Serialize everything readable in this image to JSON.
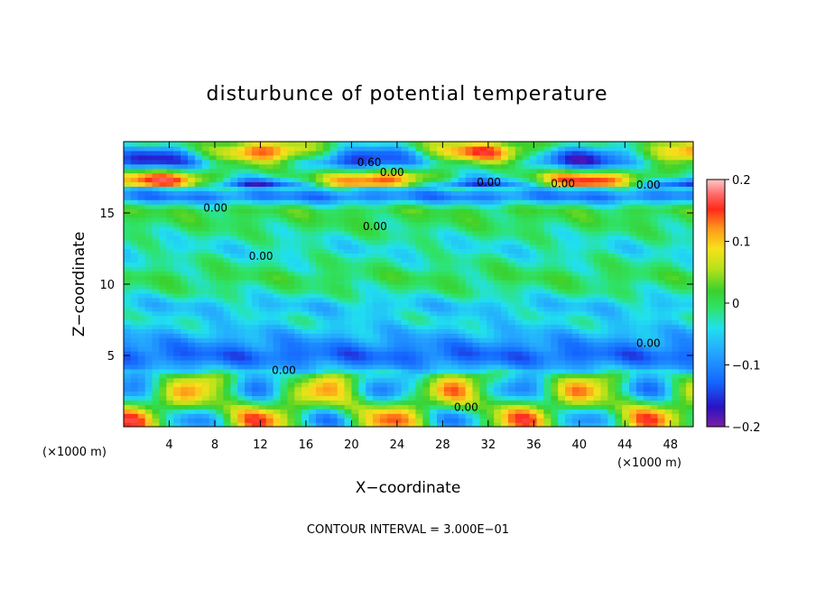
{
  "chart_data": {
    "type": "heatmap",
    "title": "disturbunce of potential temperature",
    "xlabel": "X−coordinate",
    "ylabel": "Z−coordinate",
    "x_unit": "(×1000 m)",
    "x_unit_right": "(×1000 m)",
    "xlim": [
      0,
      50
    ],
    "ylim": [
      0,
      20
    ],
    "x_ticks": [
      4,
      8,
      12,
      16,
      20,
      24,
      28,
      32,
      36,
      40,
      44,
      48
    ],
    "y_ticks": [
      5,
      10,
      15
    ],
    "colorbar": {
      "ticks": [
        0.2,
        0.1,
        0,
        -0.1,
        -0.2
      ],
      "tick_labels": [
        "0.2",
        "0.1",
        "0",
        "−0.1",
        "−0.2"
      ],
      "range": [
        -0.2,
        0.2
      ]
    },
    "row_profile": [
      {
        "z": 0.5,
        "value": 0.02
      },
      {
        "z": 1.5,
        "value": 0.03
      },
      {
        "z": 2.5,
        "value": 0.01
      },
      {
        "z": 3.5,
        "value": 0.0
      },
      {
        "z": 4.3,
        "value": -0.09
      },
      {
        "z": 5.0,
        "value": -0.13
      },
      {
        "z": 5.8,
        "value": -0.1
      },
      {
        "z": 6.5,
        "value": -0.07
      },
      {
        "z": 7.5,
        "value": -0.04
      },
      {
        "z": 8.5,
        "value": -0.06
      },
      {
        "z": 9.5,
        "value": -0.02
      },
      {
        "z": 10.5,
        "value": 0.0
      },
      {
        "z": 11.5,
        "value": -0.02
      },
      {
        "z": 12.5,
        "value": -0.04
      },
      {
        "z": 13.5,
        "value": -0.02
      },
      {
        "z": 14.5,
        "value": 0.0
      },
      {
        "z": 15.3,
        "value": 0.01
      },
      {
        "z": 16.2,
        "value": -0.12
      },
      {
        "z": 17.5,
        "value": 0.05
      },
      {
        "z": 18.5,
        "value": -0.06
      },
      {
        "z": 19.5,
        "value": 0.02
      }
    ],
    "contour_labels": [
      {
        "text": "0.60",
        "x": 20.5,
        "y": 18.3
      },
      {
        "text": "0.00",
        "x": 22.5,
        "y": 17.6
      },
      {
        "text": "0.00",
        "x": 31.0,
        "y": 16.9
      },
      {
        "text": "0.00",
        "x": 37.5,
        "y": 16.8
      },
      {
        "text": "0.00",
        "x": 45.0,
        "y": 16.7
      },
      {
        "text": "0.00",
        "x": 7.0,
        "y": 15.1
      },
      {
        "text": "0.00",
        "x": 21.0,
        "y": 13.8
      },
      {
        "text": "0.00",
        "x": 11.0,
        "y": 11.7
      },
      {
        "text": "0.00",
        "x": 13.0,
        "y": 3.7
      },
      {
        "text": "0.00",
        "x": 29.0,
        "y": 1.1
      },
      {
        "text": "0.00",
        "x": 45.0,
        "y": 5.6
      }
    ],
    "note": "CONTOUR INTERVAL = 3.000E−01"
  }
}
